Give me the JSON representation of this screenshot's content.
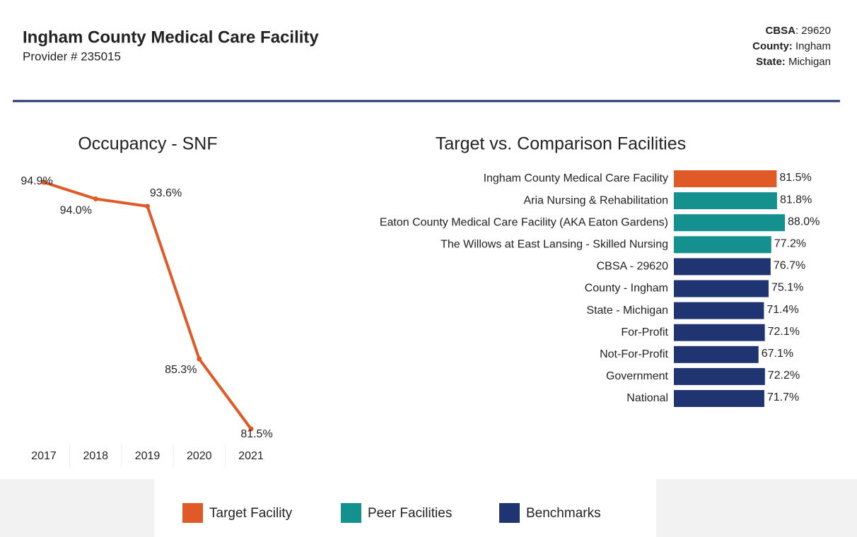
{
  "header": {
    "title": "Ingham County Medical Care Facility",
    "provider": "Provider # 235015",
    "info": [
      {
        "label": "CBSA",
        "value": ": 29620"
      },
      {
        "label": "County:",
        "value": " Ingham"
      },
      {
        "label": "State:",
        "value": " Michigan"
      }
    ]
  },
  "chart_data": [
    {
      "type": "line",
      "title": "Occupancy - SNF",
      "categories": [
        "2017",
        "2018",
        "2019",
        "2020",
        "2021"
      ],
      "values": [
        94.9,
        94.0,
        93.6,
        85.3,
        81.5
      ],
      "value_labels": [
        "94.9%",
        "94.0%",
        "93.6%",
        "85.3%",
        "81.5%"
      ],
      "color": "#e05a28"
    },
    {
      "type": "hbar",
      "title": "Target vs. Comparison Facilities",
      "categories": [
        "Ingham County Medical Care Facility",
        "Aria Nursing & Rehabilitation",
        "Eaton County Medical Care Facility (AKA Eaton Gardens)",
        "The Willows at East Lansing - Skilled Nursing",
        "CBSA - 29620",
        "County - Ingham",
        "State - Michigan",
        "For-Profit",
        "Not-For-Profit",
        "Government",
        "National"
      ],
      "values": [
        81.5,
        81.8,
        88.0,
        77.2,
        76.7,
        75.1,
        71.4,
        72.1,
        67.1,
        72.2,
        71.7
      ],
      "value_labels": [
        "81.5%",
        "81.8%",
        "88.0%",
        "77.2%",
        "76.7%",
        "75.1%",
        "71.4%",
        "72.1%",
        "67.1%",
        "72.2%",
        "71.7%"
      ],
      "colors": [
        "#e05a28",
        "#14918f",
        "#14918f",
        "#14918f",
        "#1f3470",
        "#1f3470",
        "#1f3470",
        "#1f3470",
        "#1f3470",
        "#1f3470",
        "#1f3470"
      ],
      "legend": [
        {
          "name": "Target Facility",
          "color": "#e05a28"
        },
        {
          "name": "Peer Facilities",
          "color": "#14918f"
        },
        {
          "name": "Benchmarks",
          "color": "#1f3470"
        }
      ]
    }
  ]
}
